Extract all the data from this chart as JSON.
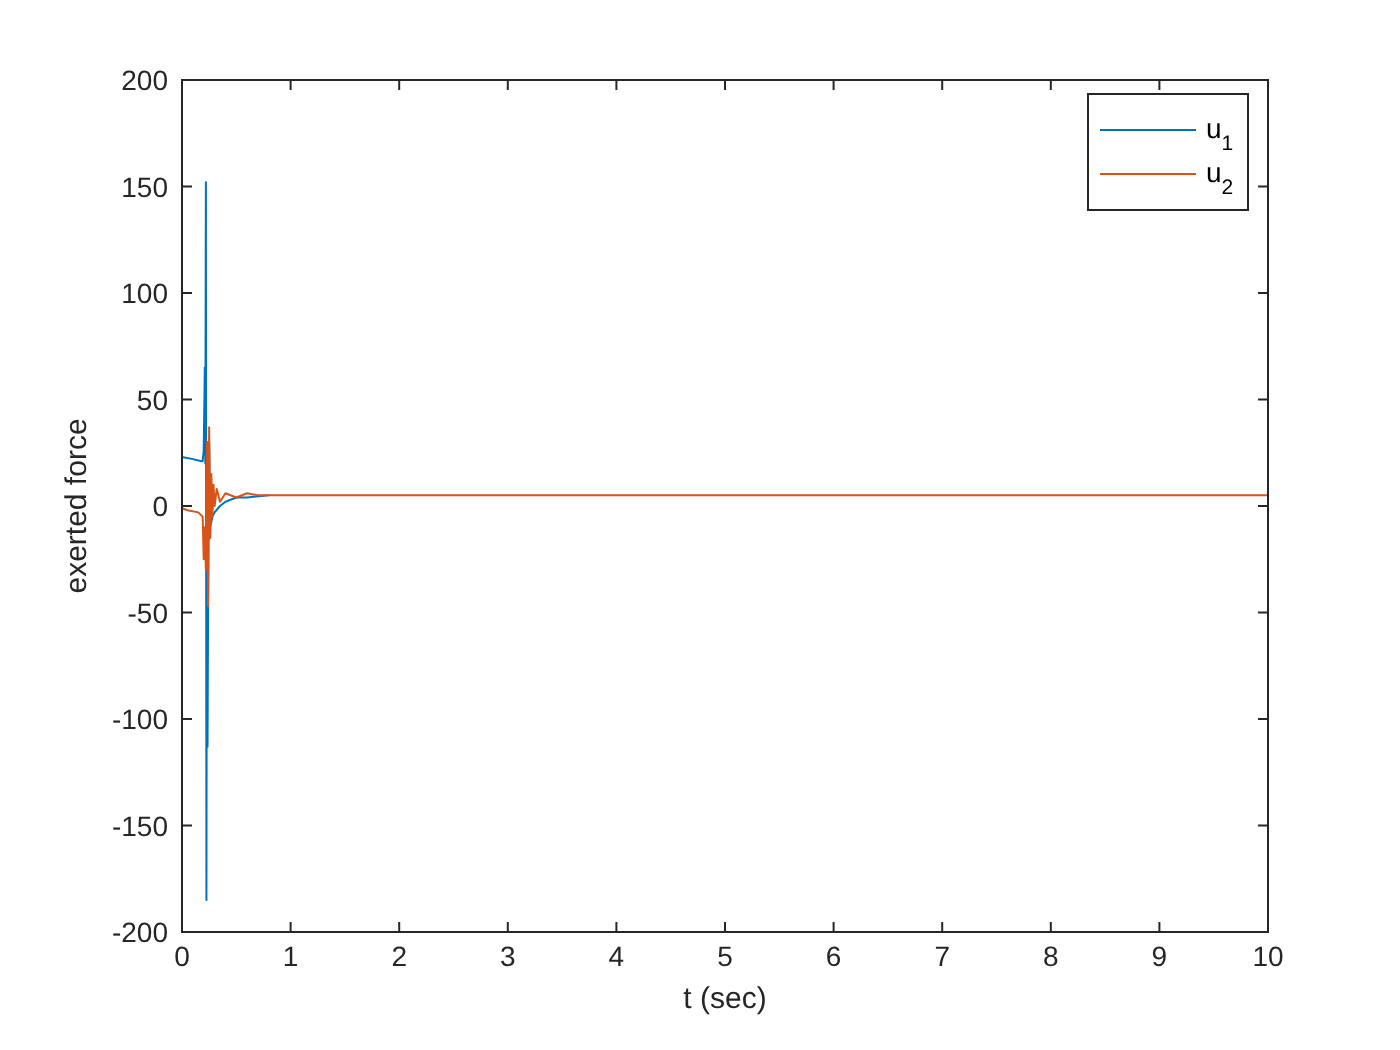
{
  "chart_data": {
    "type": "line",
    "xlabel": "t (sec)",
    "ylabel": "exerted force",
    "xlim": [
      0,
      10
    ],
    "ylim": [
      -200,
      200
    ],
    "xticks": [
      0,
      1,
      2,
      3,
      4,
      5,
      6,
      7,
      8,
      9,
      10
    ],
    "yticks": [
      -200,
      -150,
      -100,
      -50,
      0,
      50,
      100,
      150,
      200
    ],
    "grid": false,
    "legend": "top right",
    "line_style": "solid",
    "marker": "none",
    "series": [
      {
        "name": "u$_{1}$",
        "color": "#0072bd",
        "x": [
          0,
          0.1,
          0.18,
          0.19,
          0.2,
          0.21,
          0.215,
          0.22,
          0.225,
          0.23,
          0.235,
          0.24,
          0.25,
          0.26,
          0.28,
          0.3,
          0.35,
          0.4,
          0.5,
          0.6,
          0.8
        ],
        "values": [
          23,
          22,
          21,
          21,
          26,
          65,
          20,
          152,
          -185,
          30,
          -113,
          -50,
          30,
          -10,
          -5,
          -3,
          0,
          2,
          4,
          4,
          5
        ]
      },
      {
        "name": "u$_{2}$",
        "color": "#d95319",
        "x": [
          0,
          0.05,
          0.15,
          0.19,
          0.2,
          0.21,
          0.22,
          0.23,
          0.24,
          0.25,
          0.26,
          0.27,
          0.28,
          0.29,
          0.3,
          0.32,
          0.35,
          0.4,
          0.5,
          0.6,
          0.7,
          10
        ],
        "values": [
          -1,
          -2,
          -3,
          -5,
          -25,
          -10,
          -30,
          30,
          -47,
          37,
          -15,
          15,
          -5,
          10,
          0,
          8,
          2,
          6,
          4,
          6,
          5,
          5
        ]
      }
    ]
  }
}
